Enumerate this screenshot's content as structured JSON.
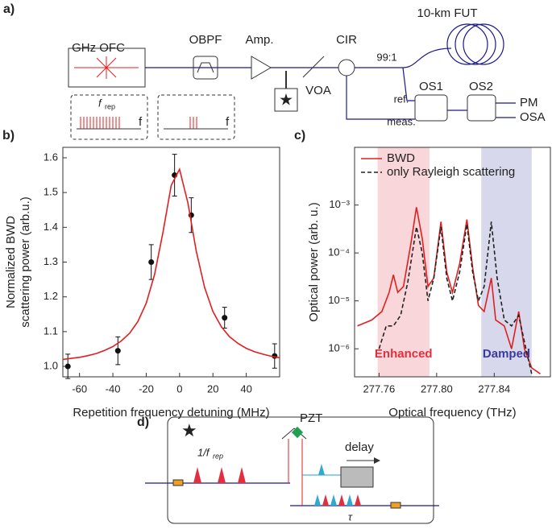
{
  "panel_a": {
    "label": "a)",
    "ofc": "GHz OFC",
    "obpf": "OBPF",
    "amp": "Amp.",
    "cir": "CIR",
    "fut": "10-km FUT",
    "ratio": "99:1",
    "voa": "VOA",
    "ref": "ref.",
    "meas": "meas.",
    "os1": "OS1",
    "os2": "OS2",
    "pm": "PM",
    "osa": "OSA",
    "frep": "f",
    "frep_sub": "rep",
    "f_axis": [
      "f",
      "f"
    ]
  },
  "chart_data": [
    {
      "type": "scatter",
      "label": "b)",
      "x_label": "Repetition frequency detuning (MHz)",
      "y_label": [
        "Normalized BWD",
        "scattering power (arb.u.)"
      ],
      "xlim": [
        -70,
        60
      ],
      "xticks": [
        -60,
        -40,
        -20,
        0,
        20,
        40
      ],
      "ylim": [
        0.97,
        1.63
      ],
      "yticks": [
        {
          "value": 1,
          "label": "1.0"
        },
        1.1,
        1.2,
        1.3,
        1.4,
        1.5,
        1.6
      ],
      "series": [
        {
          "color": "#111111",
          "marker": "circle",
          "x": [
            -67,
            -37,
            -17,
            -3,
            7,
            27,
            57
          ],
          "values": [
            1.0,
            1.045,
            1.3,
            1.55,
            1.435,
            1.14,
            1.03
          ],
          "errors": [
            0.035,
            0.04,
            0.05,
            0.06,
            0.05,
            0.03,
            0.035
          ]
        },
        {
          "color": "#e02020",
          "linestyle": "solid",
          "x": [
            -70,
            -65,
            -60,
            -55,
            -50,
            -45,
            -40,
            -35,
            -30,
            -25,
            -20,
            -15,
            -10,
            -5,
            0,
            5,
            10,
            15,
            20,
            25,
            30,
            35,
            40,
            45,
            50,
            55,
            60
          ],
          "values": [
            1.02,
            1.023,
            1.026,
            1.031,
            1.037,
            1.046,
            1.057,
            1.073,
            1.095,
            1.129,
            1.182,
            1.264,
            1.385,
            1.521,
            1.567,
            1.47,
            1.332,
            1.227,
            1.158,
            1.114,
            1.085,
            1.066,
            1.052,
            1.042,
            1.035,
            1.029,
            1.025
          ]
        }
      ]
    },
    {
      "type": "line",
      "label": "c)",
      "x_label": "Optical frequency (THz)",
      "y_label": [
        "Optical power (arb. u.)"
      ],
      "log_y": true,
      "xlim": [
        277.743,
        277.879
      ],
      "xticks": [
        277.76,
        {
          "value": 277.8,
          "label": "277.80"
        },
        277.84
      ],
      "ylim": [
        2.6e-07,
        0.016
      ],
      "yticks": [
        {
          "value": 1e-06,
          "label": "10⁻⁶"
        },
        {
          "value": 1e-05,
          "label": "10⁻⁵"
        },
        {
          "value": 0.0001,
          "label": "10⁻⁴"
        },
        {
          "value": 0.001,
          "label": "10⁻³"
        }
      ],
      "legend": "top-left",
      "regions": [
        {
          "label": "Enhanced",
          "color": "#e03040",
          "range": [
            277.759,
            277.795
          ]
        },
        {
          "label": "Damped",
          "color": "#3a3aa0",
          "range": [
            277.831,
            277.866
          ]
        }
      ],
      "series": [
        {
          "name": "BWD",
          "color": "#e02020",
          "linestyle": "solid",
          "x": [
            277.745,
            277.755,
            277.762,
            277.767,
            277.77,
            277.773,
            277.777,
            277.782,
            277.786,
            277.79,
            277.794,
            277.798,
            277.803,
            277.807,
            277.811,
            277.816,
            277.821,
            277.825,
            277.829,
            277.833,
            277.838,
            277.841,
            277.847,
            277.852,
            277.857,
            277.861,
            277.866,
            277.872
          ],
          "values": [
            3e-06,
            4e-06,
            6e-06,
            1.5e-05,
            3.5e-05,
            1.5e-05,
            2e-05,
            0.00015,
            0.0009,
            0.0002,
            2e-05,
            3e-05,
            0.00045,
            4e-05,
            1.5e-05,
            6e-05,
            0.0005,
            5e-05,
            8e-06,
            6e-06,
            3e-05,
            4e-06,
            3e-06,
            1e-06,
            6e-06,
            1e-06,
            4e-07,
            3e-07
          ]
        },
        {
          "name": "only Rayleigh scattering",
          "color": "#222222",
          "linestyle": "dashed",
          "x": [
            277.76,
            277.765,
            277.77,
            277.775,
            277.78,
            277.786,
            277.79,
            277.794,
            277.798,
            277.803,
            277.807,
            277.811,
            277.816,
            277.821,
            277.825,
            277.829,
            277.833,
            277.838,
            277.842,
            277.847,
            277.852,
            277.857,
            277.862,
            277.866
          ],
          "values": [
            1e-06,
            3e-06,
            3e-06,
            5e-06,
            2.5e-05,
            0.00035,
            0.0001,
            1e-05,
            3e-05,
            0.00035,
            3e-05,
            1e-05,
            4e-05,
            0.0004,
            4e-05,
            1e-05,
            2e-05,
            0.00045,
            3e-05,
            4e-06,
            3e-06,
            5e-06,
            1e-06,
            3e-07
          ]
        }
      ]
    }
  ],
  "panel_d": {
    "label": "d)",
    "pzt": "PZT",
    "period": "1/f",
    "period_sub": "rep",
    "delay": "delay",
    "tau": "τ"
  }
}
